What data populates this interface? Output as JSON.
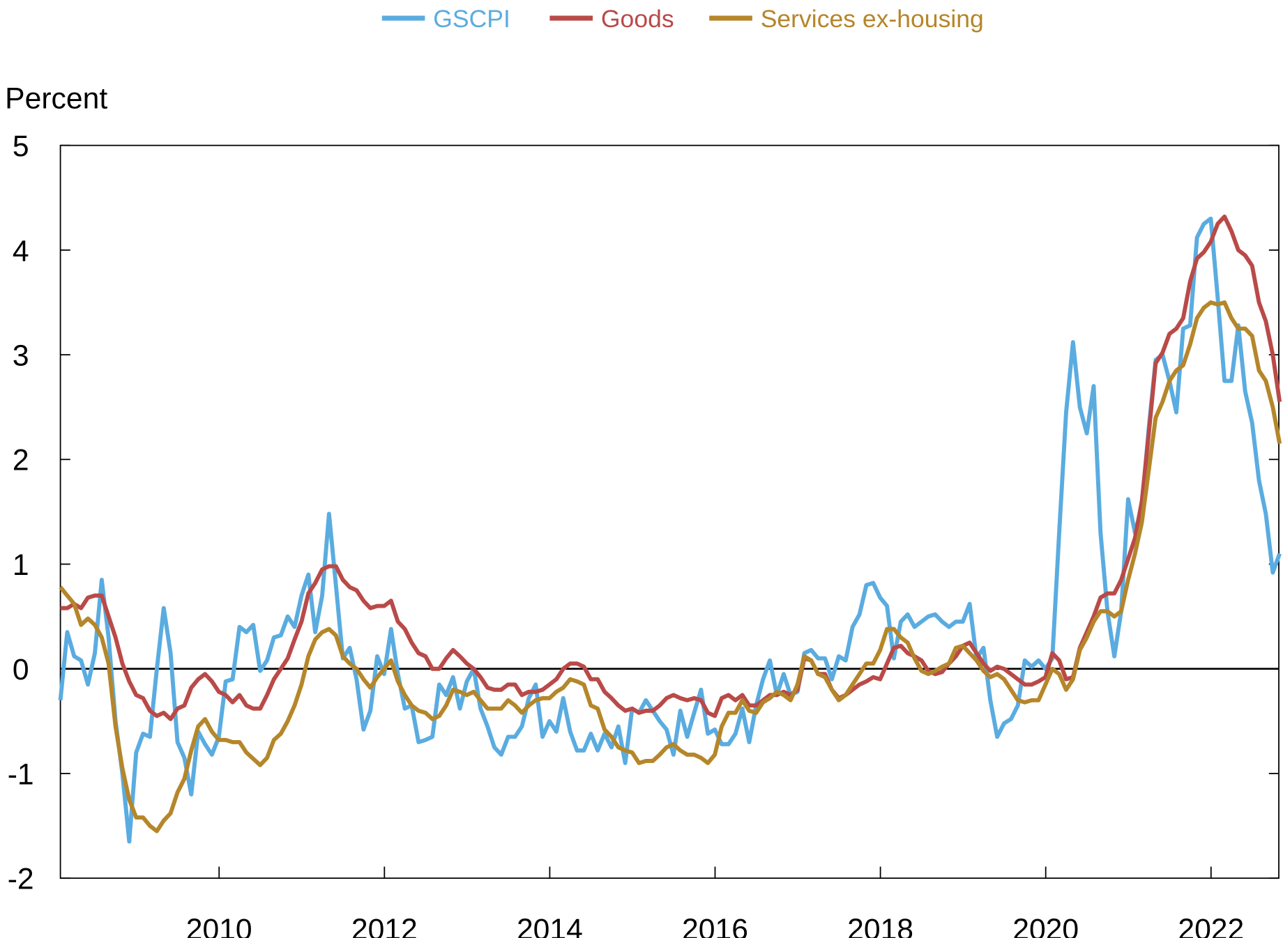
{
  "chart_data": {
    "type": "line",
    "title": "",
    "ylabel": "Percent",
    "xlabel": "",
    "x_start": "2008-01",
    "x_frequency": "monthly",
    "xlim": [
      "2008-01",
      "2022-11"
    ],
    "ylim": [
      -2,
      5
    ],
    "yticks": [
      -2,
      -1,
      0,
      1,
      2,
      3,
      4,
      5
    ],
    "ytick_labels": [
      "-2",
      "-1",
      "0",
      "1",
      "2",
      "3",
      "4",
      "5"
    ],
    "xticks": [
      2010,
      2012,
      2014,
      2016,
      2018,
      2020,
      2022
    ],
    "xtick_labels": [
      "2010",
      "2012",
      "2014",
      "2016",
      "2018",
      "2020",
      "2022"
    ],
    "zero_line": true,
    "grid": false,
    "legend_position": "top-center",
    "series": [
      {
        "name": "GSCPI",
        "color": "#5aace0",
        "values": [
          -0.3,
          0.35,
          0.12,
          0.08,
          -0.15,
          0.15,
          0.85,
          0.3,
          -0.5,
          -1.0,
          -1.65,
          -0.8,
          -0.62,
          -0.65,
          0.0,
          0.58,
          0.15,
          -0.7,
          -0.85,
          -1.2,
          -0.6,
          -0.72,
          -0.82,
          -0.65,
          -0.12,
          -0.1,
          0.4,
          0.35,
          0.42,
          -0.02,
          0.08,
          0.3,
          0.32,
          0.5,
          0.4,
          0.7,
          0.9,
          0.35,
          0.7,
          1.48,
          0.8,
          0.1,
          0.2,
          -0.1,
          -0.58,
          -0.4,
          0.12,
          -0.05,
          0.38,
          -0.05,
          -0.38,
          -0.35,
          -0.7,
          -0.68,
          -0.65,
          -0.15,
          -0.25,
          -0.08,
          -0.38,
          -0.12,
          0.0,
          -0.38,
          -0.55,
          -0.75,
          -0.82,
          -0.65,
          -0.65,
          -0.55,
          -0.28,
          -0.15,
          -0.65,
          -0.5,
          -0.6,
          -0.28,
          -0.6,
          -0.78,
          -0.78,
          -0.62,
          -0.78,
          -0.62,
          -0.75,
          -0.55,
          -0.9,
          -0.38,
          -0.42,
          -0.3,
          -0.4,
          -0.5,
          -0.58,
          -0.82,
          -0.4,
          -0.65,
          -0.42,
          -0.2,
          -0.62,
          -0.58,
          -0.72,
          -0.72,
          -0.62,
          -0.38,
          -0.7,
          -0.35,
          -0.1,
          0.08,
          -0.25,
          -0.05,
          -0.25,
          -0.22,
          0.15,
          0.18,
          0.1,
          0.1,
          -0.1,
          0.12,
          0.08,
          0.4,
          0.52,
          0.8,
          0.82,
          0.68,
          0.6,
          0.1,
          0.45,
          0.52,
          0.4,
          0.45,
          0.5,
          0.52,
          0.45,
          0.4,
          0.45,
          0.45,
          0.62,
          0.1,
          0.2,
          -0.3,
          -0.65,
          -0.52,
          -0.48,
          -0.35,
          0.08,
          0.02,
          0.08,
          0.0,
          0.1,
          1.3,
          2.45,
          3.12,
          2.5,
          2.25,
          2.7,
          1.3,
          0.55,
          0.12,
          0.55,
          1.62,
          1.3,
          1.55,
          2.3,
          2.95,
          3.0,
          2.75,
          2.45,
          3.25,
          3.28,
          4.12,
          4.25,
          4.3,
          3.55,
          2.75,
          2.75,
          3.28,
          2.65,
          2.35,
          1.8,
          1.48,
          0.92,
          1.1
        ]
      },
      {
        "name": "Goods",
        "color": "#b94a48",
        "values": [
          0.58,
          0.58,
          0.62,
          0.58,
          0.68,
          0.7,
          0.7,
          0.5,
          0.3,
          0.05,
          -0.12,
          -0.25,
          -0.28,
          -0.4,
          -0.45,
          -0.42,
          -0.48,
          -0.38,
          -0.35,
          -0.18,
          -0.1,
          -0.05,
          -0.12,
          -0.22,
          -0.25,
          -0.32,
          -0.25,
          -0.35,
          -0.38,
          -0.38,
          -0.25,
          -0.1,
          0.0,
          0.1,
          0.28,
          0.45,
          0.72,
          0.82,
          0.95,
          0.98,
          0.98,
          0.85,
          0.78,
          0.75,
          0.65,
          0.58,
          0.6,
          0.6,
          0.65,
          0.45,
          0.38,
          0.25,
          0.15,
          0.12,
          0.0,
          0.0,
          0.1,
          0.18,
          0.12,
          0.05,
          0.0,
          -0.08,
          -0.18,
          -0.2,
          -0.2,
          -0.15,
          -0.15,
          -0.25,
          -0.22,
          -0.22,
          -0.2,
          -0.15,
          -0.1,
          0.0,
          0.05,
          0.05,
          0.02,
          -0.1,
          -0.1,
          -0.22,
          -0.28,
          -0.35,
          -0.4,
          -0.38,
          -0.42,
          -0.4,
          -0.4,
          -0.35,
          -0.28,
          -0.25,
          -0.28,
          -0.3,
          -0.28,
          -0.3,
          -0.42,
          -0.45,
          -0.28,
          -0.25,
          -0.3,
          -0.25,
          -0.35,
          -0.35,
          -0.3,
          -0.25,
          -0.25,
          -0.22,
          -0.25,
          -0.2,
          0.1,
          0.08,
          -0.05,
          -0.05,
          -0.2,
          -0.28,
          -0.25,
          -0.2,
          -0.15,
          -0.12,
          -0.08,
          -0.1,
          0.05,
          0.2,
          0.22,
          0.15,
          0.12,
          0.08,
          -0.02,
          -0.05,
          -0.03,
          0.05,
          0.12,
          0.22,
          0.25,
          0.15,
          0.05,
          -0.02,
          0.02,
          0.0,
          -0.05,
          -0.1,
          -0.15,
          -0.15,
          -0.12,
          -0.08,
          0.15,
          0.08,
          -0.1,
          -0.08,
          0.2,
          0.35,
          0.5,
          0.68,
          0.72,
          0.72,
          0.85,
          1.05,
          1.25,
          1.6,
          2.25,
          2.92,
          3.02,
          3.2,
          3.25,
          3.35,
          3.7,
          3.92,
          3.98,
          4.08,
          4.25,
          4.32,
          4.18,
          4.0,
          3.95,
          3.85,
          3.5,
          3.32,
          3.0,
          2.55
        ]
      },
      {
        "name": "Services ex-housing",
        "color": "#b5862a",
        "values": [
          0.78,
          0.7,
          0.62,
          0.42,
          0.48,
          0.42,
          0.3,
          0.05,
          -0.55,
          -0.95,
          -1.25,
          -1.42,
          -1.42,
          -1.5,
          -1.55,
          -1.45,
          -1.38,
          -1.18,
          -1.05,
          -0.78,
          -0.55,
          -0.48,
          -0.6,
          -0.68,
          -0.68,
          -0.7,
          -0.7,
          -0.8,
          -0.86,
          -0.92,
          -0.85,
          -0.68,
          -0.62,
          -0.5,
          -0.35,
          -0.15,
          0.12,
          0.28,
          0.35,
          0.38,
          0.32,
          0.12,
          0.05,
          0.0,
          -0.1,
          -0.18,
          -0.08,
          0.0,
          0.08,
          -0.12,
          -0.25,
          -0.35,
          -0.4,
          -0.42,
          -0.48,
          -0.45,
          -0.35,
          -0.2,
          -0.22,
          -0.25,
          -0.22,
          -0.3,
          -0.38,
          -0.38,
          -0.38,
          -0.3,
          -0.35,
          -0.42,
          -0.35,
          -0.3,
          -0.28,
          -0.28,
          -0.22,
          -0.18,
          -0.1,
          -0.12,
          -0.15,
          -0.35,
          -0.38,
          -0.58,
          -0.65,
          -0.75,
          -0.78,
          -0.8,
          -0.9,
          -0.88,
          -0.88,
          -0.82,
          -0.75,
          -0.72,
          -0.78,
          -0.82,
          -0.82,
          -0.85,
          -0.9,
          -0.82,
          -0.55,
          -0.42,
          -0.42,
          -0.3,
          -0.4,
          -0.42,
          -0.32,
          -0.28,
          -0.22,
          -0.25,
          -0.3,
          -0.15,
          0.12,
          0.08,
          -0.05,
          -0.08,
          -0.2,
          -0.3,
          -0.25,
          -0.15,
          -0.05,
          0.05,
          0.05,
          0.18,
          0.38,
          0.38,
          0.3,
          0.25,
          0.1,
          -0.02,
          -0.05,
          -0.02,
          0.02,
          0.05,
          0.2,
          0.22,
          0.15,
          0.08,
          -0.02,
          -0.08,
          -0.05,
          -0.1,
          -0.2,
          -0.3,
          -0.32,
          -0.3,
          -0.3,
          -0.15,
          0.0,
          -0.05,
          -0.2,
          -0.1,
          0.18,
          0.3,
          0.45,
          0.55,
          0.55,
          0.5,
          0.55,
          0.85,
          1.1,
          1.4,
          1.9,
          2.4,
          2.55,
          2.75,
          2.85,
          2.9,
          3.1,
          3.35,
          3.45,
          3.5,
          3.48,
          3.5,
          3.35,
          3.25,
          3.25,
          3.18,
          2.85,
          2.75,
          2.5,
          2.15
        ]
      }
    ]
  }
}
